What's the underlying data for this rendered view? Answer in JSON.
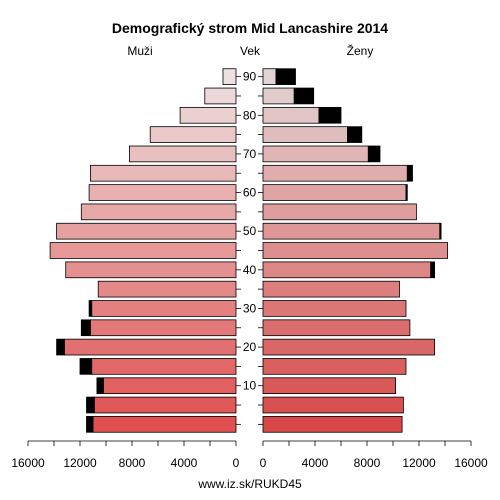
{
  "page": {
    "title": "Demografický strom Mid Lancashire 2014",
    "label_left": "Muži",
    "label_center": "Vek",
    "label_right": "Ženy",
    "footer": "www.iz.sk/RUKD45"
  },
  "chart_data": {
    "type": "bar",
    "orientation": "horizontal-pyramid",
    "title": "Demografický strom Mid Lancashire 2014",
    "age_groups": [
      "0-4",
      "5-9",
      "10-14",
      "15-19",
      "20-24",
      "25-29",
      "30-34",
      "35-39",
      "40-44",
      "45-49",
      "50-54",
      "55-59",
      "60-64",
      "65-69",
      "70-74",
      "75-79",
      "80-84",
      "85-89",
      "90+"
    ],
    "age_tick_labels": [
      "10",
      "20",
      "30",
      "40",
      "50",
      "60",
      "70",
      "80",
      "90"
    ],
    "x_tick_labels_left": [
      "16000",
      "12000",
      "8000",
      "4000",
      "0"
    ],
    "x_tick_labels_right": [
      "0",
      "4000",
      "8000",
      "12000",
      "16000"
    ],
    "xlim": [
      0,
      16000
    ],
    "series": [
      {
        "name": "Muži",
        "values": [
          11000,
          10900,
          10200,
          11100,
          13200,
          11200,
          11100,
          10600,
          13100,
          14300,
          13800,
          11900,
          11300,
          11200,
          8200,
          6600,
          4300,
          2400,
          1000
        ],
        "excess": [
          500,
          600,
          500,
          900,
          600,
          700,
          200,
          0,
          0,
          0,
          0,
          0,
          0,
          0,
          0,
          0,
          0,
          0,
          0
        ]
      },
      {
        "name": "Ženy",
        "values": [
          10700,
          10800,
          10200,
          11000,
          13200,
          11300,
          11000,
          10500,
          12900,
          14200,
          13600,
          11800,
          11000,
          11100,
          8100,
          6500,
          4300,
          2400,
          1000
        ],
        "excess": [
          0,
          0,
          0,
          0,
          0,
          0,
          0,
          0,
          300,
          0,
          100,
          0,
          100,
          400,
          900,
          1100,
          1700,
          1500,
          1500
        ]
      }
    ],
    "colors": {
      "young": "#e05050",
      "old": "#ece0e0",
      "excess": "#000000",
      "bar_stroke": "#000000"
    },
    "grid": false
  }
}
